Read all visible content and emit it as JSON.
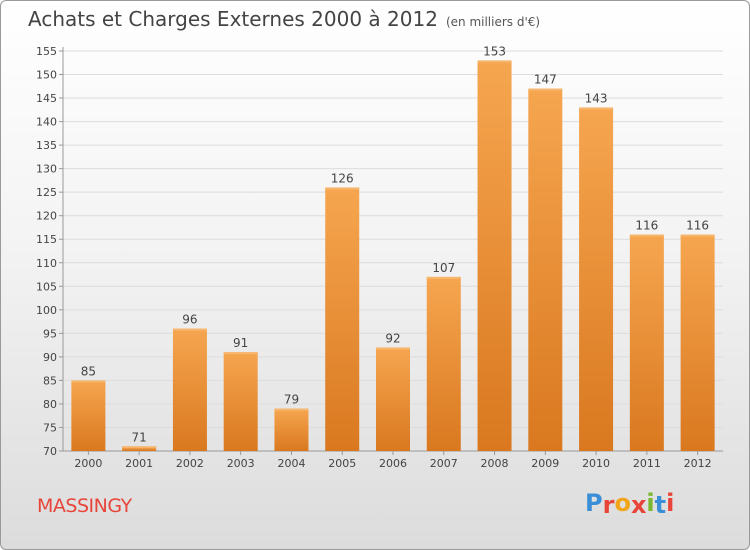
{
  "header": {
    "title": "Achats et Charges Externes 2000 à 2012",
    "unit": "(en milliers d'€)"
  },
  "footer": {
    "commune": "MASSINGY",
    "logo_letters": [
      "P",
      "r",
      "o",
      "x",
      "i",
      "t",
      "i"
    ],
    "logo_colors": [
      "#3a8fd6",
      "#e8453a",
      "#f2a516",
      "#e8453a",
      "#7cb82f",
      "#3a8fd6",
      "#e8453a"
    ]
  },
  "colors": {
    "bar_top": "#f6a650",
    "bar_bottom": "#d9781f",
    "bar_edge": "#f7b66e",
    "grid": "#dcdcdc",
    "axis": "#999999"
  },
  "chart_data": {
    "type": "bar",
    "categories": [
      "2000",
      "2001",
      "2002",
      "2003",
      "2004",
      "2005",
      "2006",
      "2007",
      "2008",
      "2009",
      "2010",
      "2011",
      "2012"
    ],
    "values": [
      85,
      71,
      96,
      91,
      79,
      126,
      92,
      107,
      153,
      147,
      143,
      116,
      116
    ],
    "ylim": [
      70,
      155
    ],
    "yticks": [
      70,
      75,
      80,
      85,
      90,
      95,
      100,
      105,
      110,
      115,
      120,
      125,
      130,
      135,
      140,
      145,
      150,
      155
    ],
    "grid": true,
    "data_labels": true
  }
}
